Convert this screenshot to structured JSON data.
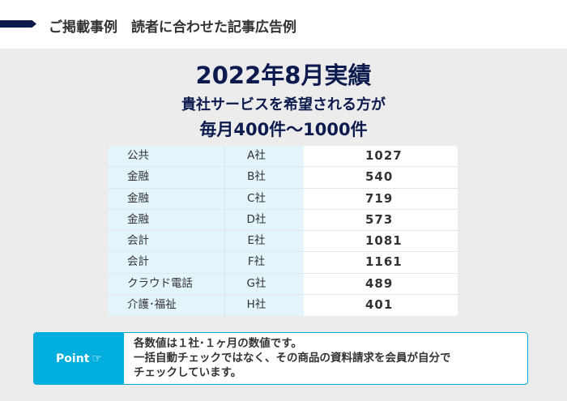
{
  "header": {
    "title": "ご掲載事例　読者に合わせた記事広告例"
  },
  "headline": {
    "line1": "2022年8月実績",
    "line2": "貴社サービスを希望される方が",
    "line3": "毎月400件〜1000件"
  },
  "table": {
    "rows": [
      {
        "industry": "公共",
        "company": "A社",
        "value": "1027"
      },
      {
        "industry": "金融",
        "company": "B社",
        "value": "540"
      },
      {
        "industry": "金融",
        "company": "C社",
        "value": "719"
      },
      {
        "industry": "金融",
        "company": "D社",
        "value": "573"
      },
      {
        "industry": "会計",
        "company": "E社",
        "value": "1081"
      },
      {
        "industry": "会計",
        "company": "F社",
        "value": "1161"
      },
      {
        "industry": "クラウド電話",
        "company": "G社",
        "value": "489"
      },
      {
        "industry": "介護･福祉",
        "company": "H社",
        "value": "401"
      }
    ]
  },
  "point": {
    "label": "Point",
    "icon": "pointing-hand-icon",
    "lines": [
      "各数値は１社･１ヶ月の数値です。",
      "一括自動チェックではなく、その商品の資料請求を会員が自分で",
      "チェックしています。"
    ]
  },
  "colors": {
    "navy": "#0d1a4e",
    "accent": "#00aede",
    "cell": "#e3f4fb"
  }
}
